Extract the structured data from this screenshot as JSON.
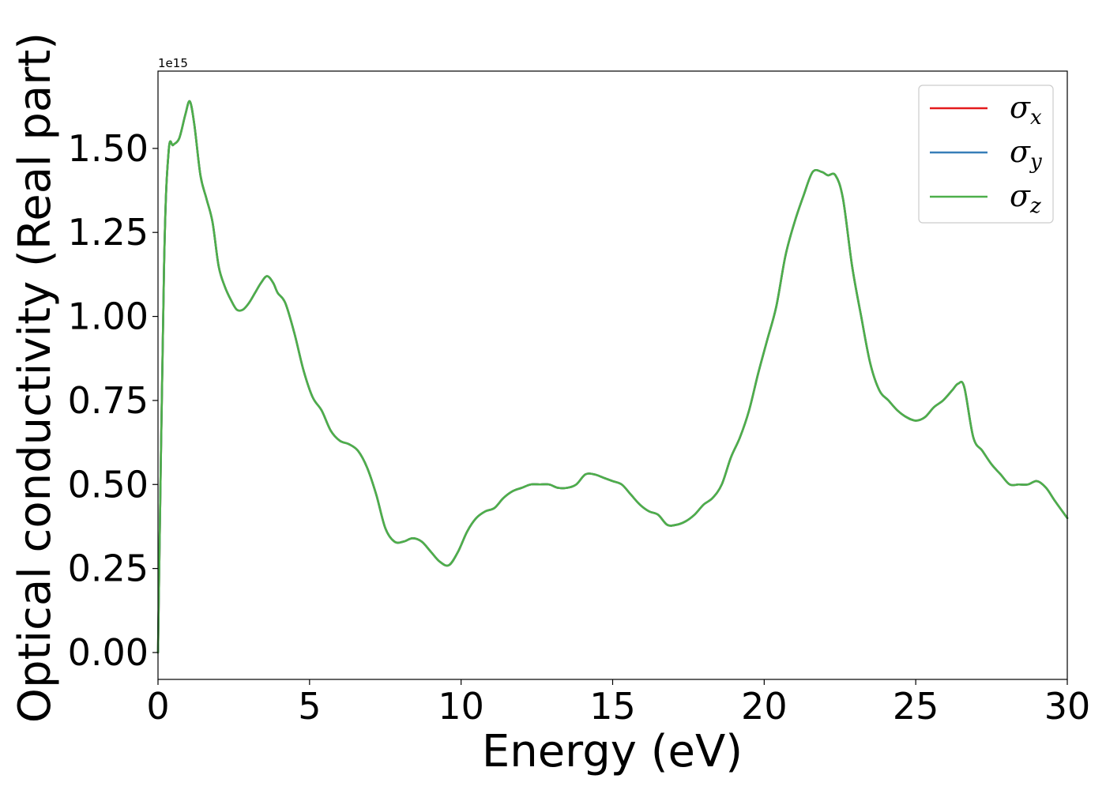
{
  "chart_data": {
    "type": "line",
    "xlabel": "Energy (eV)",
    "ylabel": "Optical conductivity (Real part)",
    "y_offset_label": "1e15",
    "xlim": [
      0,
      30
    ],
    "ylim": [
      -0.08,
      1.73
    ],
    "x_ticks": [
      0,
      5,
      10,
      15,
      20,
      25,
      30
    ],
    "x_tick_labels": [
      "0",
      "5",
      "10",
      "15",
      "20",
      "25",
      "30"
    ],
    "y_ticks": [
      0.0,
      0.25,
      0.5,
      0.75,
      1.0,
      1.25,
      1.5
    ],
    "y_tick_labels": [
      "0.00",
      "0.25",
      "0.50",
      "0.75",
      "1.00",
      "1.25",
      "1.50"
    ],
    "grid": false,
    "legend_position": "top-right",
    "x": [
      0.0,
      0.2,
      0.35,
      0.5,
      0.7,
      0.9,
      1.05,
      1.2,
      1.4,
      1.6,
      1.8,
      2.0,
      2.2,
      2.4,
      2.6,
      2.8,
      3.0,
      3.2,
      3.4,
      3.6,
      3.8,
      3.95,
      4.2,
      4.5,
      4.8,
      5.1,
      5.4,
      5.7,
      6.0,
      6.3,
      6.6,
      6.9,
      7.2,
      7.5,
      7.8,
      8.1,
      8.4,
      8.7,
      9.0,
      9.3,
      9.6,
      9.9,
      10.2,
      10.5,
      10.8,
      11.1,
      11.4,
      11.7,
      12.0,
      12.3,
      12.6,
      12.9,
      13.2,
      13.5,
      13.8,
      14.1,
      14.4,
      14.7,
      15.0,
      15.3,
      15.6,
      15.9,
      16.2,
      16.5,
      16.8,
      17.1,
      17.4,
      17.7,
      18.0,
      18.3,
      18.6,
      18.9,
      19.2,
      19.5,
      19.8,
      20.1,
      20.4,
      20.7,
      21.0,
      21.3,
      21.6,
      21.9,
      22.1,
      22.35,
      22.6,
      22.9,
      23.2,
      23.5,
      23.8,
      24.1,
      24.4,
      24.7,
      25.0,
      25.3,
      25.6,
      25.9,
      26.2,
      26.4,
      26.6,
      26.9,
      27.2,
      27.5,
      27.8,
      28.1,
      28.4,
      28.7,
      29.0,
      29.3,
      29.6,
      30.0
    ],
    "series": [
      {
        "name": "σx",
        "color": "#e41a1c",
        "values": [
          0.0,
          1.15,
          1.49,
          1.51,
          1.53,
          1.6,
          1.64,
          1.57,
          1.42,
          1.35,
          1.28,
          1.15,
          1.09,
          1.05,
          1.02,
          1.02,
          1.04,
          1.07,
          1.1,
          1.12,
          1.1,
          1.07,
          1.04,
          0.95,
          0.84,
          0.76,
          0.72,
          0.66,
          0.63,
          0.62,
          0.6,
          0.55,
          0.47,
          0.37,
          0.33,
          0.33,
          0.34,
          0.33,
          0.3,
          0.27,
          0.26,
          0.3,
          0.36,
          0.4,
          0.42,
          0.43,
          0.46,
          0.48,
          0.49,
          0.5,
          0.5,
          0.5,
          0.49,
          0.49,
          0.5,
          0.53,
          0.53,
          0.52,
          0.51,
          0.5,
          0.47,
          0.44,
          0.42,
          0.41,
          0.38,
          0.38,
          0.39,
          0.41,
          0.44,
          0.46,
          0.5,
          0.58,
          0.64,
          0.72,
          0.83,
          0.93,
          1.03,
          1.18,
          1.28,
          1.36,
          1.43,
          1.43,
          1.42,
          1.42,
          1.35,
          1.15,
          1.0,
          0.86,
          0.78,
          0.75,
          0.72,
          0.7,
          0.69,
          0.7,
          0.73,
          0.75,
          0.78,
          0.8,
          0.79,
          0.64,
          0.6,
          0.56,
          0.53,
          0.5,
          0.5,
          0.5,
          0.51,
          0.49,
          0.45,
          0.4
        ]
      },
      {
        "name": "σy",
        "color": "#377eb8",
        "values": [
          0.0,
          1.15,
          1.49,
          1.51,
          1.53,
          1.6,
          1.64,
          1.57,
          1.42,
          1.35,
          1.28,
          1.15,
          1.09,
          1.05,
          1.02,
          1.02,
          1.04,
          1.07,
          1.1,
          1.12,
          1.1,
          1.07,
          1.04,
          0.95,
          0.84,
          0.76,
          0.72,
          0.66,
          0.63,
          0.62,
          0.6,
          0.55,
          0.47,
          0.37,
          0.33,
          0.33,
          0.34,
          0.33,
          0.3,
          0.27,
          0.26,
          0.3,
          0.36,
          0.4,
          0.42,
          0.43,
          0.46,
          0.48,
          0.49,
          0.5,
          0.5,
          0.5,
          0.49,
          0.49,
          0.5,
          0.53,
          0.53,
          0.52,
          0.51,
          0.5,
          0.47,
          0.44,
          0.42,
          0.41,
          0.38,
          0.38,
          0.39,
          0.41,
          0.44,
          0.46,
          0.5,
          0.58,
          0.64,
          0.72,
          0.83,
          0.93,
          1.03,
          1.18,
          1.28,
          1.36,
          1.43,
          1.43,
          1.42,
          1.42,
          1.35,
          1.15,
          1.0,
          0.86,
          0.78,
          0.75,
          0.72,
          0.7,
          0.69,
          0.7,
          0.73,
          0.75,
          0.78,
          0.8,
          0.79,
          0.64,
          0.6,
          0.56,
          0.53,
          0.5,
          0.5,
          0.5,
          0.51,
          0.49,
          0.45,
          0.4
        ]
      },
      {
        "name": "σz",
        "color": "#4daf4a",
        "values": [
          0.0,
          1.15,
          1.49,
          1.51,
          1.53,
          1.6,
          1.64,
          1.57,
          1.42,
          1.35,
          1.28,
          1.15,
          1.09,
          1.05,
          1.02,
          1.02,
          1.04,
          1.07,
          1.1,
          1.12,
          1.1,
          1.07,
          1.04,
          0.95,
          0.84,
          0.76,
          0.72,
          0.66,
          0.63,
          0.62,
          0.6,
          0.55,
          0.47,
          0.37,
          0.33,
          0.33,
          0.34,
          0.33,
          0.3,
          0.27,
          0.26,
          0.3,
          0.36,
          0.4,
          0.42,
          0.43,
          0.46,
          0.48,
          0.49,
          0.5,
          0.5,
          0.5,
          0.49,
          0.49,
          0.5,
          0.53,
          0.53,
          0.52,
          0.51,
          0.5,
          0.47,
          0.44,
          0.42,
          0.41,
          0.38,
          0.38,
          0.39,
          0.41,
          0.44,
          0.46,
          0.5,
          0.58,
          0.64,
          0.72,
          0.83,
          0.93,
          1.03,
          1.18,
          1.28,
          1.36,
          1.43,
          1.43,
          1.42,
          1.42,
          1.35,
          1.15,
          1.0,
          0.86,
          0.78,
          0.75,
          0.72,
          0.7,
          0.69,
          0.7,
          0.73,
          0.75,
          0.78,
          0.8,
          0.79,
          0.64,
          0.6,
          0.56,
          0.53,
          0.5,
          0.5,
          0.5,
          0.51,
          0.49,
          0.45,
          0.4
        ]
      }
    ],
    "legend": [
      {
        "symbol": "σ",
        "sub": "x"
      },
      {
        "symbol": "σ",
        "sub": "y"
      },
      {
        "symbol": "σ",
        "sub": "z"
      }
    ]
  }
}
